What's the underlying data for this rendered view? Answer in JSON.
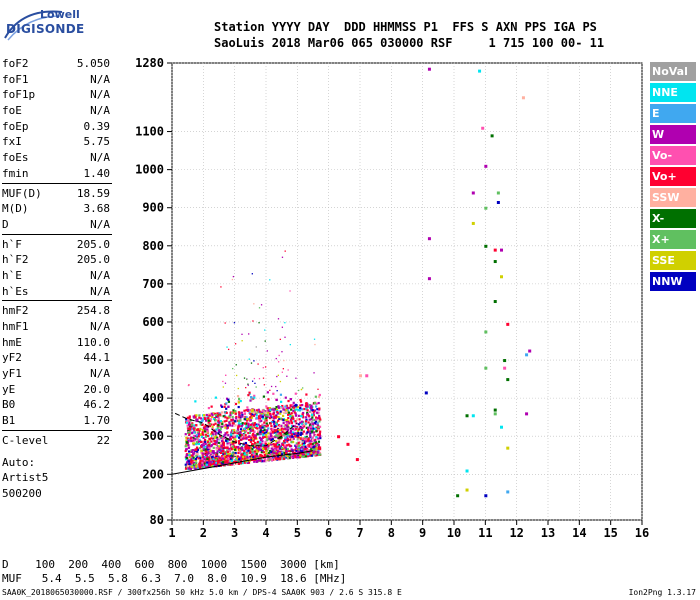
{
  "logo": {
    "line1": "Lowell",
    "line2": "DIGISONDE"
  },
  "header": {
    "labels": "Station YYYY DAY  DDD HHMMSS P1  FFS S AXN PPS IGA PS",
    "values": "SaoLuis 2018 Mar06 065 030000 RSF     1 715 100 00- 11"
  },
  "params": [
    {
      "name": "foF2",
      "value": "5.050"
    },
    {
      "name": "foF1",
      "value": "N/A"
    },
    {
      "name": "foF1p",
      "value": "N/A"
    },
    {
      "name": "foE",
      "value": "N/A"
    },
    {
      "name": "foEp",
      "value": "0.39"
    },
    {
      "name": "fxI",
      "value": "5.75"
    },
    {
      "name": "foEs",
      "value": "N/A"
    },
    {
      "name": "fmin",
      "value": "1.40"
    },
    {
      "name": "MUF(D)",
      "value": "18.59"
    },
    {
      "name": "M(D)",
      "value": "3.68"
    },
    {
      "name": "D",
      "value": "N/A"
    },
    {
      "name": "h`F",
      "value": "205.0"
    },
    {
      "name": "h`F2",
      "value": "205.0"
    },
    {
      "name": "h`E",
      "value": "N/A"
    },
    {
      "name": "h`Es",
      "value": "N/A"
    },
    {
      "name": "hmF2",
      "value": "254.8"
    },
    {
      "name": "hmF1",
      "value": "N/A"
    },
    {
      "name": "hmE",
      "value": "110.0"
    },
    {
      "name": "yF2",
      "value": "44.1"
    },
    {
      "name": "yF1",
      "value": "N/A"
    },
    {
      "name": "yE",
      "value": "20.0"
    },
    {
      "name": "B0",
      "value": "46.2"
    },
    {
      "name": "B1",
      "value": "1.70"
    },
    {
      "name": "C-level",
      "value": "22"
    }
  ],
  "autoscale": {
    "line1": "Auto:",
    "line2": "Artist5",
    "line3": "500200"
  },
  "legend": [
    {
      "label": "NoVal",
      "color": "#a0a0a0"
    },
    {
      "label": "NNE",
      "color": "#00e5f0"
    },
    {
      "label": "E",
      "color": "#40a8f0"
    },
    {
      "label": "W",
      "color": "#b000b0"
    },
    {
      "label": "Vo-",
      "color": "#ff50b0"
    },
    {
      "label": "Vo+",
      "color": "#ff0030"
    },
    {
      "label": "SSW",
      "color": "#ffb0a0"
    },
    {
      "label": "X-",
      "color": "#007000"
    },
    {
      "label": "X+",
      "color": "#60c060"
    },
    {
      "label": "SSE",
      "color": "#d0d000"
    },
    {
      "label": "NNW",
      "color": "#0000c0"
    }
  ],
  "muf_table": {
    "row1": "D    100  200  400  600  800  1000  1500  3000 [km]",
    "row2": "MUF   5.4  5.5  5.8  6.3  7.0  8.0  10.9  18.6 [MHz]"
  },
  "footer": {
    "left": "SAA0K_2018065030000.RSF / 300fx256h 50 kHz 5.0 km / DPS-4 SAA0K 903 / 2.6 S 315.8 E",
    "right": "Ion2Png 1.3.17"
  },
  "chart_data": {
    "type": "scatter",
    "xlim": [
      1,
      16
    ],
    "ylim": [
      80,
      1280
    ],
    "x_ticks": [
      1,
      2,
      3,
      4,
      5,
      6,
      7,
      8,
      9,
      10,
      11,
      12,
      13,
      14,
      15,
      16
    ],
    "y_ticks": [
      80,
      200,
      300,
      400,
      500,
      600,
      700,
      800,
      900,
      1000,
      1100,
      1280
    ],
    "grid": true,
    "series": [
      {
        "legend_index": 3,
        "points": [
          [
            9.2,
            1265
          ],
          [
            11.0,
            1010
          ],
          [
            10.6,
            940
          ],
          [
            12.3,
            360
          ],
          [
            9.2,
            820
          ],
          [
            9.2,
            715
          ],
          [
            11.5,
            790
          ],
          [
            12.4,
            525
          ]
        ]
      },
      {
        "legend_index": 1,
        "points": [
          [
            10.8,
            1260
          ],
          [
            10.6,
            355
          ],
          [
            11.5,
            325
          ],
          [
            10.4,
            210
          ]
        ]
      },
      {
        "legend_index": 2,
        "points": [
          [
            12.3,
            515
          ],
          [
            11.7,
            155
          ]
        ]
      },
      {
        "legend_index": 5,
        "points": [
          [
            6.3,
            300
          ],
          [
            6.6,
            280
          ],
          [
            6.9,
            240
          ],
          [
            11.3,
            790
          ],
          [
            11.7,
            595
          ]
        ]
      },
      {
        "legend_index": 4,
        "points": [
          [
            10.9,
            1110
          ],
          [
            11.6,
            480
          ],
          [
            7.2,
            460
          ]
        ]
      },
      {
        "legend_index": 7,
        "points": [
          [
            11.2,
            1090
          ],
          [
            11.0,
            800
          ],
          [
            11.3,
            760
          ],
          [
            11.3,
            655
          ],
          [
            11.6,
            500
          ],
          [
            10.4,
            355
          ],
          [
            11.7,
            450
          ],
          [
            11.3,
            370
          ],
          [
            10.1,
            145
          ]
        ]
      },
      {
        "legend_index": 8,
        "points": [
          [
            11.0,
            900
          ],
          [
            11.4,
            940
          ],
          [
            11.3,
            360
          ],
          [
            11.0,
            480
          ],
          [
            11.0,
            575
          ]
        ]
      },
      {
        "legend_index": 9,
        "points": [
          [
            10.6,
            860
          ],
          [
            11.5,
            720
          ],
          [
            10.4,
            160
          ],
          [
            11.7,
            270
          ]
        ]
      },
      {
        "legend_index": 10,
        "points": [
          [
            11.4,
            915
          ],
          [
            9.1,
            415
          ],
          [
            11.0,
            145
          ]
        ]
      },
      {
        "legend_index": 6,
        "points": [
          [
            12.2,
            1190
          ],
          [
            7.0,
            460
          ]
        ]
      }
    ],
    "traces": [
      {
        "name": "hmF2-profile",
        "points": [
          [
            1.0,
            200
          ],
          [
            2.0,
            215
          ],
          [
            3.0,
            230
          ],
          [
            4.0,
            245
          ],
          [
            5.0,
            255
          ],
          [
            5.5,
            262
          ]
        ]
      },
      {
        "name": "hF-trace",
        "points": [
          [
            1.1,
            360
          ],
          [
            1.5,
            345
          ],
          [
            2.0,
            335
          ],
          [
            2.5,
            305
          ],
          [
            3.0,
            285
          ],
          [
            3.5,
            275
          ],
          [
            4.0,
            275
          ],
          [
            4.5,
            300
          ],
          [
            5.0,
            335
          ]
        ]
      }
    ]
  }
}
